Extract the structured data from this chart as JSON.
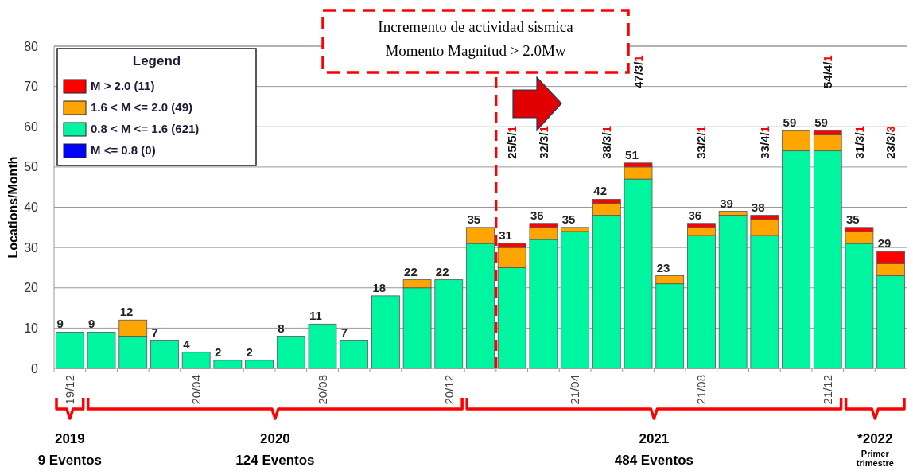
{
  "chart_data": {
    "type": "bar",
    "stacked": true,
    "ylabel": "Locations/Month",
    "legend_title": "Legend",
    "legend": "top left",
    "grid": "y",
    "categories": [
      "19/12",
      null,
      null,
      null,
      "20/04",
      null,
      null,
      null,
      "20/08",
      null,
      null,
      null,
      "20/12",
      null,
      null,
      null,
      "21/04",
      null,
      null,
      null,
      "21/08",
      null,
      null,
      null,
      "21/12",
      null,
      null
    ],
    "ylim": [
      0,
      80
    ],
    "yticks": [
      0,
      10,
      20,
      30,
      40,
      50,
      60,
      70,
      80
    ],
    "series": [
      {
        "name": "M <= 0.8 (0)",
        "color": "#0000ff",
        "values": [
          0,
          0,
          0,
          0,
          0,
          0,
          0,
          0,
          0,
          0,
          0,
          0,
          0,
          0,
          0,
          0,
          0,
          0,
          0,
          0,
          0,
          0,
          0,
          0,
          0,
          0,
          0
        ]
      },
      {
        "name": "0.8 < M <= 1.6 (621)",
        "color": "#00f5a0",
        "values": [
          9,
          9,
          8,
          7,
          4,
          2,
          2,
          8,
          11,
          7,
          18,
          20,
          22,
          31,
          25,
          32,
          34,
          38,
          47,
          21,
          33,
          38,
          33,
          54,
          54,
          31,
          23
        ]
      },
      {
        "name": "1.6 < M <= 2.0 (49)",
        "color": "#ffa500",
        "values": [
          0,
          0,
          4,
          0,
          0,
          0,
          0,
          0,
          0,
          0,
          0,
          2,
          0,
          4,
          5,
          3,
          1,
          3,
          3,
          2,
          2,
          1,
          4,
          5,
          4,
          3,
          3
        ]
      },
      {
        "name": "M > 2.0 (11)",
        "color": "#ff0000",
        "values": [
          0,
          0,
          0,
          0,
          0,
          0,
          0,
          0,
          0,
          0,
          0,
          0,
          0,
          0,
          1,
          1,
          0,
          1,
          1,
          0,
          1,
          0,
          1,
          0,
          1,
          1,
          3
        ]
      }
    ],
    "totals": [
      "9",
      "9",
      "12",
      "7",
      "4",
      "2",
      "2",
      "8",
      "11",
      "7",
      "18",
      "22",
      "22",
      "35",
      "31",
      "36",
      "35",
      "42",
      "51",
      "23",
      "36",
      "39",
      "38",
      "59",
      "59",
      "35",
      "29"
    ],
    "annotations": [
      "Incremento de actividad sismica",
      "Momento Magnitud > 2.0Mw",
      "2019",
      "9 Eventos",
      "2020",
      "124 Eventos",
      "2021",
      "484 Eventos",
      "*2022",
      "Primer trimestre",
      "25/5/1",
      "32/3/1",
      "38/3/1",
      "47/3/1",
      "33/2/1",
      "33/4/1",
      "54/4/1",
      "31/3/1",
      "23/3/3"
    ]
  }
}
